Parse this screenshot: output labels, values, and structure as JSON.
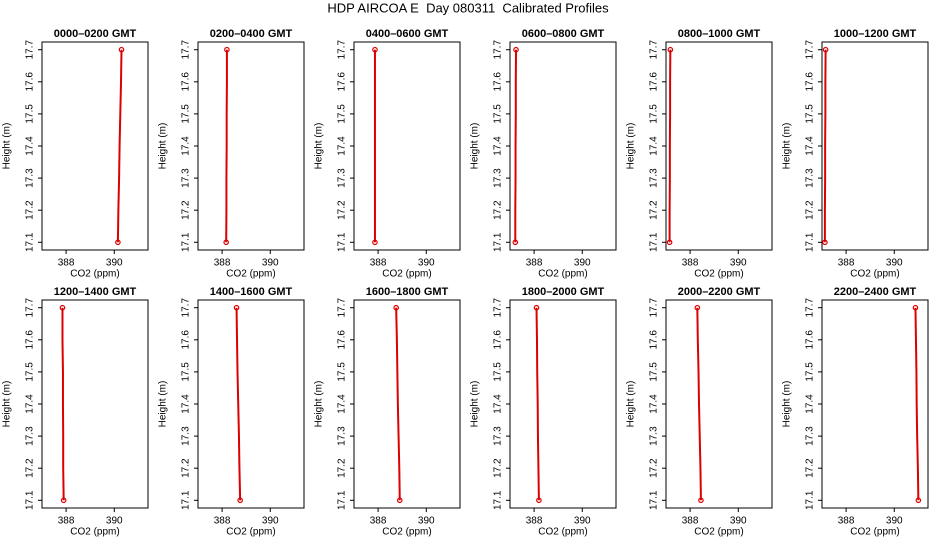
{
  "title": "HDP AIRCOA E  Day 080311  Calibrated Profiles",
  "chart_data": [
    {
      "type": "line",
      "title": "0000–0200 GMT",
      "xlabel": "CO2 (ppm)",
      "ylabel": "Height (m)",
      "color": "#dd0000",
      "x": [
        390.15,
        390.17,
        390.2,
        390.22,
        390.25,
        390.28,
        390.3
      ],
      "y": [
        17.1,
        17.2,
        17.3,
        17.4,
        17.5,
        17.6,
        17.7
      ],
      "xlim": [
        387,
        391.4
      ],
      "ylim": [
        17.076,
        17.724
      ],
      "xticks": [
        388,
        390
      ],
      "yticks": [
        17.1,
        17.2,
        17.3,
        17.4,
        17.5,
        17.6,
        17.7
      ]
    },
    {
      "type": "line",
      "title": "0200–0400 GMT",
      "xlabel": "CO2 (ppm)",
      "ylabel": "Height (m)",
      "color": "#dd0000",
      "x": [
        388.17,
        388.18,
        388.18,
        388.19,
        388.19,
        388.2,
        388.2
      ],
      "y": [
        17.1,
        17.2,
        17.3,
        17.4,
        17.5,
        17.6,
        17.7
      ],
      "xlim": [
        387,
        391.4
      ],
      "ylim": [
        17.076,
        17.724
      ],
      "xticks": [
        388,
        390
      ],
      "yticks": [
        17.1,
        17.2,
        17.3,
        17.4,
        17.5,
        17.6,
        17.7
      ]
    },
    {
      "type": "line",
      "title": "0400–0600 GMT",
      "xlabel": "CO2 (ppm)",
      "ylabel": "Height (m)",
      "color": "#dd0000",
      "x": [
        387.87,
        387.87,
        387.87,
        387.87,
        387.87,
        387.87,
        387.87
      ],
      "y": [
        17.1,
        17.2,
        17.3,
        17.4,
        17.5,
        17.6,
        17.7
      ],
      "xlim": [
        387,
        391.4
      ],
      "ylim": [
        17.076,
        17.724
      ],
      "xticks": [
        388,
        390
      ],
      "yticks": [
        17.1,
        17.2,
        17.3,
        17.4,
        17.5,
        17.6,
        17.7
      ]
    },
    {
      "type": "line",
      "title": "0600–0800 GMT",
      "xlabel": "CO2 (ppm)",
      "ylabel": "Height (m)",
      "color": "#dd0000",
      "x": [
        387.22,
        387.22,
        387.23,
        387.23,
        387.24,
        387.24,
        387.25
      ],
      "y": [
        17.1,
        17.2,
        17.3,
        17.4,
        17.5,
        17.6,
        17.7
      ],
      "xlim": [
        387,
        391.4
      ],
      "ylim": [
        17.076,
        17.724
      ],
      "xticks": [
        388,
        390
      ],
      "yticks": [
        17.1,
        17.2,
        17.3,
        17.4,
        17.5,
        17.6,
        17.7
      ]
    },
    {
      "type": "line",
      "title": "0800–1000 GMT",
      "xlabel": "CO2 (ppm)",
      "ylabel": "Height (m)",
      "color": "#dd0000",
      "x": [
        387.15,
        387.15,
        387.16,
        387.16,
        387.17,
        387.17,
        387.18
      ],
      "y": [
        17.1,
        17.2,
        17.3,
        17.4,
        17.5,
        17.6,
        17.7
      ],
      "xlim": [
        387,
        391.4
      ],
      "ylim": [
        17.076,
        17.724
      ],
      "xticks": [
        388,
        390
      ],
      "yticks": [
        17.1,
        17.2,
        17.3,
        17.4,
        17.5,
        17.6,
        17.7
      ]
    },
    {
      "type": "line",
      "title": "1000–1200 GMT",
      "xlabel": "CO2 (ppm)",
      "ylabel": "Height (m)",
      "color": "#dd0000",
      "x": [
        387.12,
        387.12,
        387.13,
        387.13,
        387.14,
        387.14,
        387.15
      ],
      "y": [
        17.1,
        17.2,
        17.3,
        17.4,
        17.5,
        17.6,
        17.7
      ],
      "xlim": [
        387,
        391.4
      ],
      "ylim": [
        17.076,
        17.724
      ],
      "xticks": [
        388,
        390
      ],
      "yticks": [
        17.1,
        17.2,
        17.3,
        17.4,
        17.5,
        17.6,
        17.7
      ]
    },
    {
      "type": "line",
      "title": "1200–1400 GMT",
      "xlabel": "CO2 (ppm)",
      "ylabel": "Height (m)",
      "color": "#dd0000",
      "x": [
        387.9,
        387.88,
        387.88,
        387.87,
        387.87,
        387.85,
        387.85
      ],
      "y": [
        17.1,
        17.2,
        17.3,
        17.4,
        17.5,
        17.6,
        17.7
      ],
      "xlim": [
        387,
        391.4
      ],
      "ylim": [
        17.076,
        17.724
      ],
      "xticks": [
        388,
        390
      ],
      "yticks": [
        17.1,
        17.2,
        17.3,
        17.4,
        17.5,
        17.6,
        17.7
      ]
    },
    {
      "type": "line",
      "title": "1400–1600 GMT",
      "xlabel": "CO2 (ppm)",
      "ylabel": "Height (m)",
      "color": "#dd0000",
      "x": [
        388.75,
        388.72,
        388.7,
        388.67,
        388.64,
        388.62,
        388.6
      ],
      "y": [
        17.1,
        17.2,
        17.3,
        17.4,
        17.5,
        17.6,
        17.7
      ],
      "xlim": [
        387,
        391.4
      ],
      "ylim": [
        17.076,
        17.724
      ],
      "xticks": [
        388,
        390
      ],
      "yticks": [
        17.1,
        17.2,
        17.3,
        17.4,
        17.5,
        17.6,
        17.7
      ]
    },
    {
      "type": "line",
      "title": "1600–1800 GMT",
      "xlabel": "CO2 (ppm)",
      "ylabel": "Height (m)",
      "color": "#dd0000",
      "x": [
        388.9,
        388.88,
        388.85,
        388.82,
        388.8,
        388.78,
        388.75
      ],
      "y": [
        17.1,
        17.2,
        17.3,
        17.4,
        17.5,
        17.6,
        17.7
      ],
      "xlim": [
        387,
        391.4
      ],
      "ylim": [
        17.076,
        17.724
      ],
      "xticks": [
        388,
        390
      ],
      "yticks": [
        17.1,
        17.2,
        17.3,
        17.4,
        17.5,
        17.6,
        17.7
      ]
    },
    {
      "type": "line",
      "title": "1800–2000 GMT",
      "xlabel": "CO2 (ppm)",
      "ylabel": "Height (m)",
      "color": "#dd0000",
      "x": [
        388.2,
        388.18,
        388.16,
        388.15,
        388.13,
        388.12,
        388.1
      ],
      "y": [
        17.1,
        17.2,
        17.3,
        17.4,
        17.5,
        17.6,
        17.7
      ],
      "xlim": [
        387,
        391.4
      ],
      "ylim": [
        17.076,
        17.724
      ],
      "xticks": [
        388,
        390
      ],
      "yticks": [
        17.1,
        17.2,
        17.3,
        17.4,
        17.5,
        17.6,
        17.7
      ]
    },
    {
      "type": "line",
      "title": "2000–2200 GMT",
      "xlabel": "CO2 (ppm)",
      "ylabel": "Height (m)",
      "color": "#dd0000",
      "x": [
        388.45,
        388.43,
        388.4,
        388.37,
        388.35,
        388.32,
        388.3
      ],
      "y": [
        17.1,
        17.2,
        17.3,
        17.4,
        17.5,
        17.6,
        17.7
      ],
      "xlim": [
        387,
        391.4
      ],
      "ylim": [
        17.076,
        17.724
      ],
      "xticks": [
        388,
        390
      ],
      "yticks": [
        17.1,
        17.2,
        17.3,
        17.4,
        17.5,
        17.6,
        17.7
      ]
    },
    {
      "type": "line",
      "title": "2200–2400 GMT",
      "xlabel": "CO2 (ppm)",
      "ylabel": "Height (m)",
      "color": "#dd0000",
      "x": [
        391.0,
        390.98,
        390.95,
        390.93,
        390.92,
        390.9,
        390.88
      ],
      "y": [
        17.1,
        17.2,
        17.3,
        17.4,
        17.5,
        17.6,
        17.7
      ],
      "xlim": [
        387,
        391.4
      ],
      "ylim": [
        17.076,
        17.724
      ],
      "xticks": [
        388,
        390
      ],
      "yticks": [
        17.1,
        17.2,
        17.3,
        17.4,
        17.5,
        17.6,
        17.7
      ]
    }
  ]
}
